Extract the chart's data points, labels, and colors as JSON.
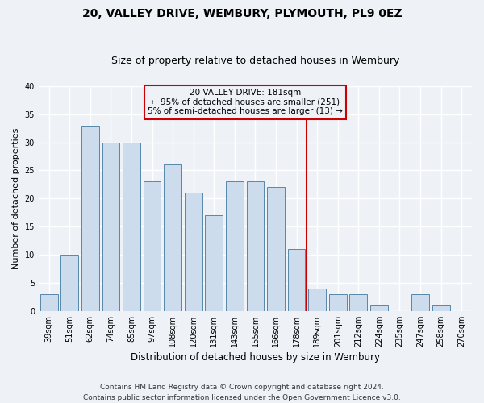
{
  "title": "20, VALLEY DRIVE, WEMBURY, PLYMOUTH, PL9 0EZ",
  "subtitle": "Size of property relative to detached houses in Wembury",
  "xlabel": "Distribution of detached houses by size in Wembury",
  "ylabel": "Number of detached properties",
  "categories": [
    "39sqm",
    "51sqm",
    "62sqm",
    "74sqm",
    "85sqm",
    "97sqm",
    "108sqm",
    "120sqm",
    "131sqm",
    "143sqm",
    "155sqm",
    "166sqm",
    "178sqm",
    "189sqm",
    "201sqm",
    "212sqm",
    "224sqm",
    "235sqm",
    "247sqm",
    "258sqm",
    "270sqm"
  ],
  "values": [
    3,
    10,
    33,
    30,
    30,
    23,
    26,
    21,
    17,
    23,
    23,
    22,
    11,
    4,
    3,
    3,
    1,
    0,
    3,
    1,
    0
  ],
  "bar_color": "#ccdcec",
  "bar_edge_color": "#5588aa",
  "vline_color": "#cc0000",
  "box_color": "#cc0000",
  "ylim": [
    0,
    40
  ],
  "yticks": [
    0,
    5,
    10,
    15,
    20,
    25,
    30,
    35,
    40
  ],
  "footer": "Contains HM Land Registry data © Crown copyright and database right 2024.\nContains public sector information licensed under the Open Government Licence v3.0.",
  "bg_color": "#eef2f7",
  "grid_color": "#ffffff",
  "title_fontsize": 10,
  "subtitle_fontsize": 9,
  "tick_fontsize": 7,
  "ylabel_fontsize": 8,
  "xlabel_fontsize": 8.5,
  "footer_fontsize": 6.5,
  "annotation_fontsize": 7.5,
  "property_label": "20 VALLEY DRIVE: 181sqm",
  "annotation_line1": "← 95% of detached houses are smaller (251)",
  "annotation_line2": "5% of semi-detached houses are larger (13) →",
  "vline_bar_index": 12
}
